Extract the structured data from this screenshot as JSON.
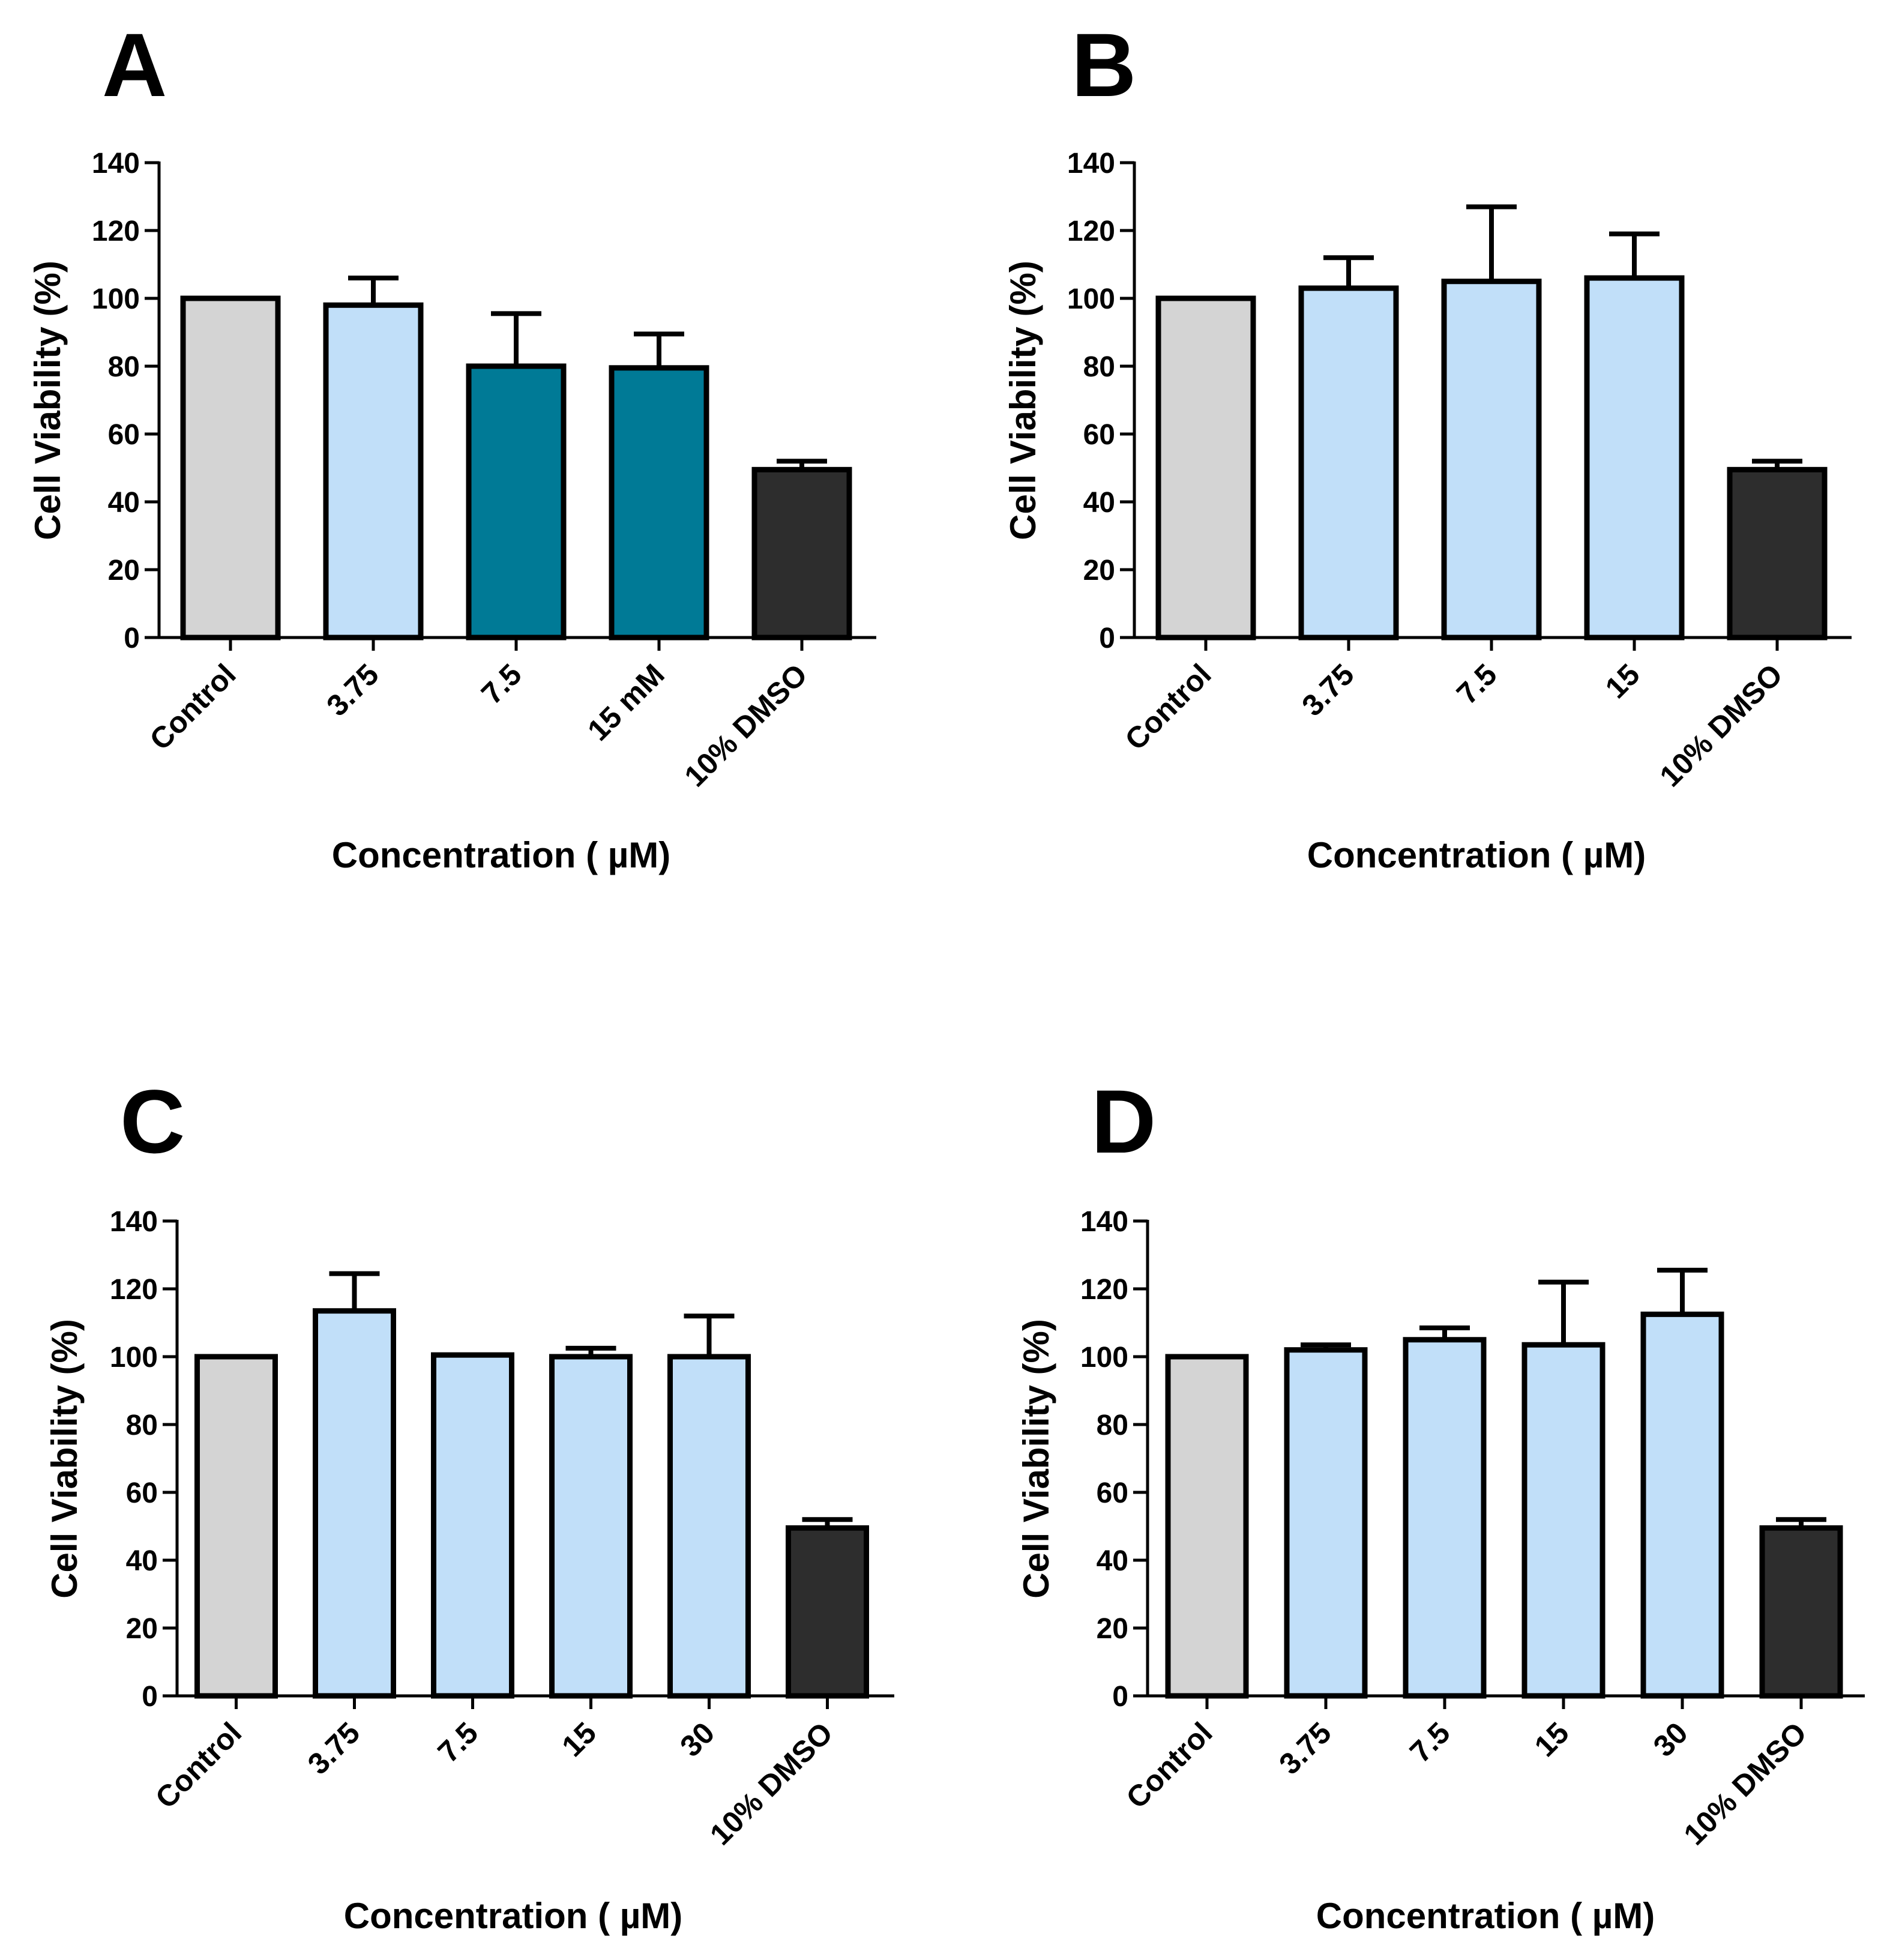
{
  "colors": {
    "control": "#d4d4d4",
    "light_blue": "#c1dff9",
    "teal": "#007a96",
    "dmso": "#2d2d2d"
  },
  "chart_data": [
    {
      "panel": "A",
      "type": "bar",
      "title": "",
      "xlabel": "Concentration ( µM)",
      "ylabel": "Cell Viability (%)",
      "ylim": [
        0,
        140
      ],
      "yticks": [
        0,
        20,
        40,
        60,
        80,
        100,
        120,
        140
      ],
      "categories": [
        "Control",
        "3.75",
        "7.5",
        "15 mM",
        "10% DMSO"
      ],
      "values": [
        100,
        98,
        80,
        79.5,
        49.5
      ],
      "errors": [
        0,
        8,
        15.5,
        10,
        2.5
      ],
      "bar_colors": [
        "control",
        "light_blue",
        "teal",
        "teal",
        "dmso"
      ]
    },
    {
      "panel": "B",
      "type": "bar",
      "title": "",
      "xlabel": "Concentration ( µM)",
      "ylabel": "Cell Viability (%)",
      "ylim": [
        0,
        140
      ],
      "yticks": [
        0,
        20,
        40,
        60,
        80,
        100,
        120,
        140
      ],
      "categories": [
        "Control",
        "3.75",
        "7.5",
        "15",
        "10% DMSO"
      ],
      "values": [
        100,
        103,
        105,
        106,
        49.5
      ],
      "errors": [
        0,
        9,
        22,
        13,
        2.5
      ],
      "bar_colors": [
        "control",
        "light_blue",
        "light_blue",
        "light_blue",
        "dmso"
      ]
    },
    {
      "panel": "C",
      "type": "bar",
      "title": "",
      "xlabel": "Concentration ( µM)",
      "ylabel": "Cell Viability (%)",
      "ylim": [
        0,
        140
      ],
      "yticks": [
        0,
        20,
        40,
        60,
        80,
        100,
        120,
        140
      ],
      "categories": [
        "Control",
        "3.75",
        "7.5",
        "15",
        "30",
        "10% DMSO"
      ],
      "values": [
        100,
        113.5,
        100.5,
        100,
        100,
        49.5
      ],
      "errors": [
        0,
        11,
        0,
        2.5,
        12,
        2.5
      ],
      "bar_colors": [
        "control",
        "light_blue",
        "light_blue",
        "light_blue",
        "light_blue",
        "dmso"
      ]
    },
    {
      "panel": "D",
      "type": "bar",
      "title": "",
      "xlabel": "Concentration ( µM)",
      "ylabel": "Cell Viability (%)",
      "ylim": [
        0,
        140
      ],
      "yticks": [
        0,
        20,
        40,
        60,
        80,
        100,
        120,
        140
      ],
      "categories": [
        "Control",
        "3.75",
        "7.5",
        "15",
        "30",
        "10% DMSO"
      ],
      "values": [
        100,
        102,
        105,
        103.5,
        112.5,
        49.5
      ],
      "errors": [
        0,
        1.5,
        3.5,
        18.5,
        13,
        2.5
      ],
      "bar_colors": [
        "control",
        "light_blue",
        "light_blue",
        "light_blue",
        "light_blue",
        "dmso"
      ]
    }
  ]
}
